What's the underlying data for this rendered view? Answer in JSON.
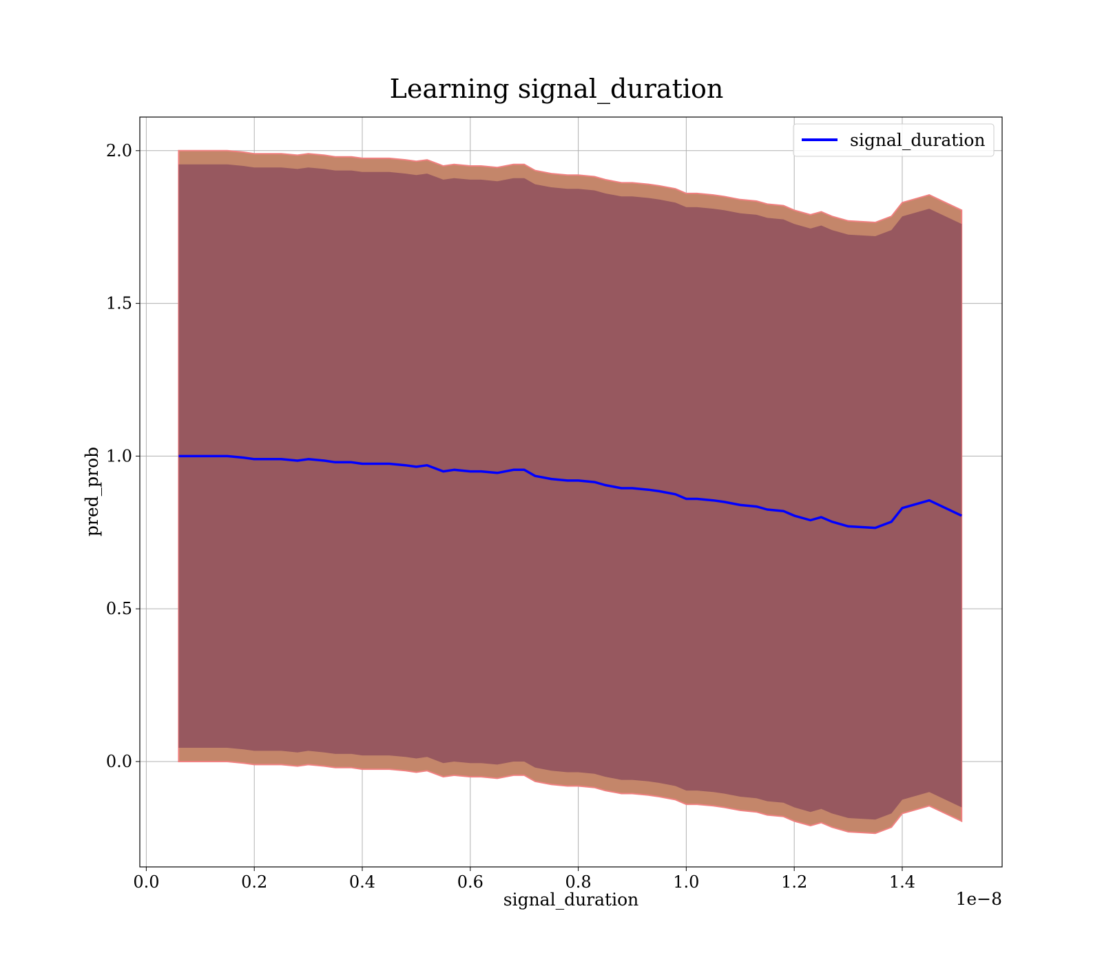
{
  "chart_data": {
    "type": "line",
    "title": "Learning signal_duration",
    "xlabel": "signal_duration",
    "ylabel": "pred_prob",
    "x_offset_label": "1e−8",
    "x_tick_labels": [
      "0.0",
      "0.2",
      "0.4",
      "0.6",
      "0.8",
      "1.0",
      "1.2",
      "1.4"
    ],
    "y_tick_labels": [
      "0.0",
      "0.5",
      "1.0",
      "1.5",
      "2.0"
    ],
    "xlim": [
      -0.012,
      1.585
    ],
    "ylim": [
      -0.345,
      2.11
    ],
    "x_unit_scale": "1e-8",
    "grid": true,
    "legend": {
      "position": "top-right",
      "entries": [
        "signal_duration"
      ]
    },
    "colors": {
      "line": "#0000ff",
      "inner_band": "#8b4c5c",
      "outer_band": "#c4866a",
      "band_edge": "#f08080",
      "grid": "#b0b0b0"
    },
    "series": [
      {
        "name": "signal_duration",
        "x": [
          0.06,
          0.08,
          0.1,
          0.12,
          0.15,
          0.18,
          0.2,
          0.23,
          0.25,
          0.28,
          0.3,
          0.33,
          0.35,
          0.38,
          0.4,
          0.43,
          0.45,
          0.48,
          0.5,
          0.52,
          0.55,
          0.57,
          0.6,
          0.62,
          0.65,
          0.68,
          0.7,
          0.72,
          0.75,
          0.78,
          0.8,
          0.83,
          0.85,
          0.88,
          0.9,
          0.93,
          0.95,
          0.98,
          1.0,
          1.02,
          1.05,
          1.07,
          1.1,
          1.13,
          1.15,
          1.18,
          1.2,
          1.23,
          1.25,
          1.27,
          1.3,
          1.35,
          1.38,
          1.4,
          1.45,
          1.51
        ],
        "y": [
          1.0,
          1.0,
          1.0,
          1.0,
          1.0,
          0.995,
          0.99,
          0.99,
          0.99,
          0.985,
          0.99,
          0.985,
          0.98,
          0.98,
          0.975,
          0.975,
          0.975,
          0.97,
          0.965,
          0.97,
          0.95,
          0.955,
          0.95,
          0.95,
          0.945,
          0.955,
          0.955,
          0.935,
          0.925,
          0.92,
          0.92,
          0.915,
          0.905,
          0.895,
          0.895,
          0.89,
          0.885,
          0.875,
          0.86,
          0.86,
          0.855,
          0.85,
          0.84,
          0.835,
          0.825,
          0.82,
          0.805,
          0.79,
          0.8,
          0.785,
          0.77,
          0.765,
          0.785,
          0.83,
          0.855,
          0.805
        ],
        "outer_band": {
          "upper": [
            2.0,
            2.0,
            2.0,
            2.0,
            2.0,
            1.995,
            1.99,
            1.99,
            1.99,
            1.985,
            1.99,
            1.985,
            1.98,
            1.98,
            1.975,
            1.975,
            1.975,
            1.97,
            1.965,
            1.97,
            1.95,
            1.955,
            1.95,
            1.95,
            1.945,
            1.955,
            1.955,
            1.935,
            1.925,
            1.92,
            1.92,
            1.915,
            1.905,
            1.895,
            1.895,
            1.89,
            1.885,
            1.875,
            1.86,
            1.86,
            1.855,
            1.85,
            1.84,
            1.835,
            1.825,
            1.82,
            1.805,
            1.79,
            1.8,
            1.785,
            1.77,
            1.765,
            1.785,
            1.83,
            1.855,
            1.805
          ],
          "lower": [
            0.0,
            0.0,
            0.0,
            0.0,
            0.0,
            -0.005,
            -0.01,
            -0.01,
            -0.01,
            -0.015,
            -0.01,
            -0.015,
            -0.02,
            -0.02,
            -0.025,
            -0.025,
            -0.025,
            -0.03,
            -0.035,
            -0.03,
            -0.05,
            -0.045,
            -0.05,
            -0.05,
            -0.055,
            -0.045,
            -0.045,
            -0.065,
            -0.075,
            -0.08,
            -0.08,
            -0.085,
            -0.095,
            -0.105,
            -0.105,
            -0.11,
            -0.115,
            -0.125,
            -0.14,
            -0.14,
            -0.145,
            -0.15,
            -0.16,
            -0.165,
            -0.175,
            -0.18,
            -0.195,
            -0.21,
            -0.2,
            -0.215,
            -0.23,
            -0.235,
            -0.215,
            -0.17,
            -0.145,
            -0.195
          ]
        },
        "inner_band": {
          "upper": [
            1.955,
            1.955,
            1.955,
            1.955,
            1.955,
            1.95,
            1.945,
            1.945,
            1.945,
            1.94,
            1.945,
            1.94,
            1.935,
            1.935,
            1.93,
            1.93,
            1.93,
            1.925,
            1.92,
            1.925,
            1.905,
            1.91,
            1.905,
            1.905,
            1.9,
            1.91,
            1.91,
            1.89,
            1.88,
            1.875,
            1.875,
            1.87,
            1.86,
            1.85,
            1.85,
            1.845,
            1.84,
            1.83,
            1.815,
            1.815,
            1.81,
            1.805,
            1.795,
            1.79,
            1.78,
            1.775,
            1.76,
            1.745,
            1.755,
            1.74,
            1.725,
            1.72,
            1.74,
            1.785,
            1.81,
            1.76
          ],
          "lower": [
            0.045,
            0.045,
            0.045,
            0.045,
            0.045,
            0.04,
            0.035,
            0.035,
            0.035,
            0.03,
            0.035,
            0.03,
            0.025,
            0.025,
            0.02,
            0.02,
            0.02,
            0.015,
            0.01,
            0.015,
            -0.005,
            0.0,
            -0.005,
            -0.005,
            -0.01,
            0.0,
            0.0,
            -0.02,
            -0.03,
            -0.035,
            -0.035,
            -0.04,
            -0.05,
            -0.06,
            -0.06,
            -0.065,
            -0.07,
            -0.08,
            -0.095,
            -0.095,
            -0.1,
            -0.105,
            -0.115,
            -0.12,
            -0.13,
            -0.135,
            -0.15,
            -0.165,
            -0.155,
            -0.17,
            -0.185,
            -0.19,
            -0.17,
            -0.125,
            -0.1,
            -0.15
          ]
        }
      }
    ]
  }
}
